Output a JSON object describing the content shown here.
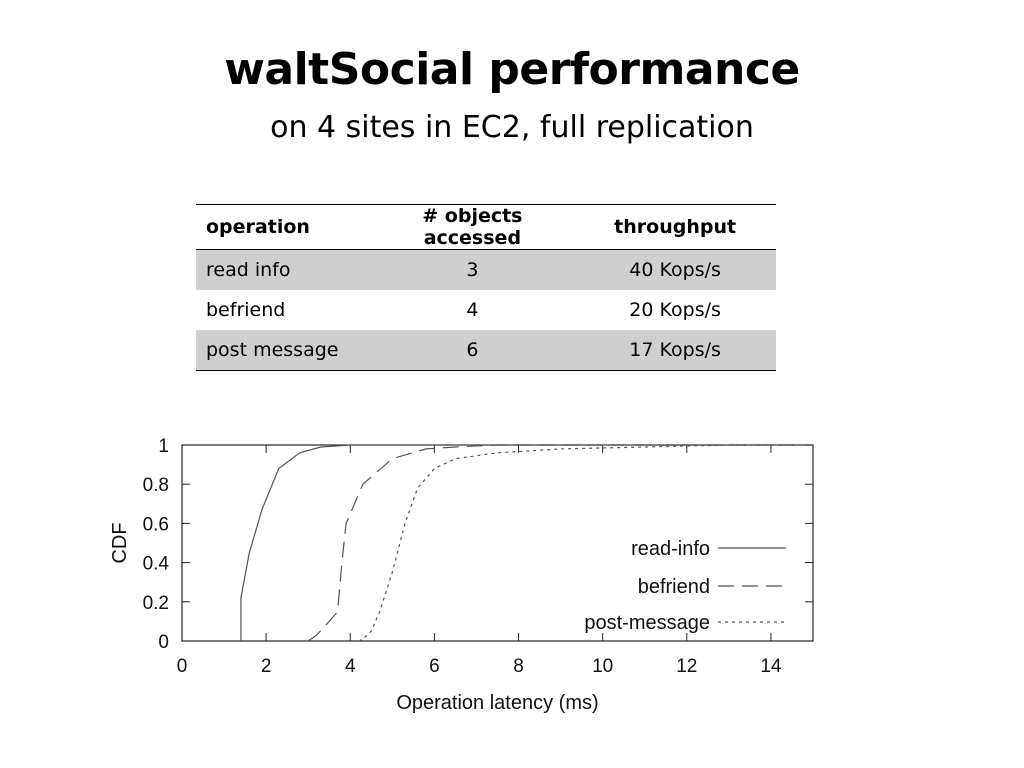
{
  "slide": {
    "title": "waltSocial performance",
    "subtitle": "on 4 sites in EC2, full replication"
  },
  "table": {
    "headers": [
      "operation",
      "# objects accessed",
      "throughput"
    ],
    "rows": [
      [
        "read info",
        "3",
        "40 Kops/s"
      ],
      [
        "befriend",
        "4",
        "20 Kops/s"
      ],
      [
        "post message",
        "6",
        "17 Kops/s"
      ]
    ]
  },
  "chart_data": {
    "type": "line",
    "xlabel": "Operation latency (ms)",
    "ylabel": "CDF",
    "xlim": [
      0,
      15
    ],
    "ylim": [
      0,
      1
    ],
    "xticks": [
      "0",
      "2",
      "4",
      "6",
      "8",
      "10",
      "12",
      "14"
    ],
    "yticks": [
      "0",
      "0.2",
      "0.4",
      "0.6",
      "0.8",
      "1"
    ],
    "grid": false,
    "legend_position": "bottom-right",
    "series": [
      {
        "name": "read-info",
        "style": "solid",
        "color": "#555555",
        "points": [
          [
            1.4,
            0
          ],
          [
            1.4,
            0.22
          ],
          [
            1.6,
            0.45
          ],
          [
            1.9,
            0.67
          ],
          [
            2.3,
            0.88
          ],
          [
            2.8,
            0.96
          ],
          [
            3.3,
            0.99
          ],
          [
            4.0,
            1.0
          ],
          [
            15,
            1.0
          ]
        ]
      },
      {
        "name": "befriend",
        "style": "dashed",
        "color": "#555555",
        "points": [
          [
            3.0,
            0
          ],
          [
            3.2,
            0.03
          ],
          [
            3.5,
            0.1
          ],
          [
            3.7,
            0.15
          ],
          [
            3.8,
            0.4
          ],
          [
            3.9,
            0.6
          ],
          [
            4.3,
            0.8
          ],
          [
            5.0,
            0.93
          ],
          [
            5.8,
            0.98
          ],
          [
            6.5,
            0.99
          ],
          [
            7.5,
            1.0
          ],
          [
            15,
            1.0
          ]
        ]
      },
      {
        "name": "post-message",
        "style": "dotted",
        "color": "#555555",
        "points": [
          [
            4.2,
            0
          ],
          [
            4.3,
            0.01
          ],
          [
            4.5,
            0.05
          ],
          [
            4.7,
            0.15
          ],
          [
            5.0,
            0.35
          ],
          [
            5.3,
            0.6
          ],
          [
            5.6,
            0.78
          ],
          [
            6.0,
            0.88
          ],
          [
            6.5,
            0.93
          ],
          [
            7.5,
            0.96
          ],
          [
            9.0,
            0.98
          ],
          [
            11.0,
            0.99
          ],
          [
            13.0,
            1.0
          ],
          [
            15,
            1.0
          ]
        ]
      }
    ]
  }
}
